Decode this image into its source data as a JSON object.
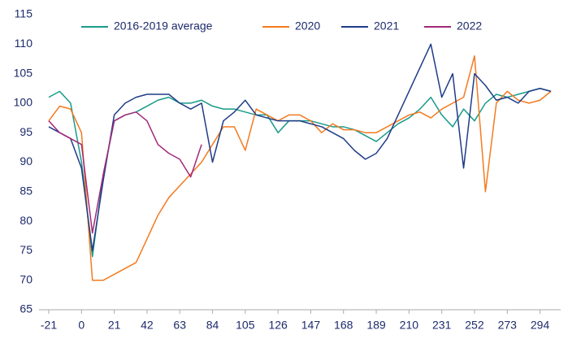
{
  "chart_data": {
    "type": "line",
    "x": [
      -21,
      -14,
      -7,
      0,
      7,
      14,
      21,
      28,
      35,
      42,
      49,
      56,
      63,
      70,
      77,
      84,
      91,
      98,
      105,
      112,
      119,
      126,
      133,
      140,
      147,
      154,
      161,
      168,
      175,
      182,
      189,
      196,
      203,
      210,
      217,
      224,
      231,
      238,
      245,
      252,
      259,
      266,
      273,
      280,
      287,
      294,
      301
    ],
    "series": [
      {
        "name": "2016-2019 average",
        "color": "#1a9a8a",
        "values": [
          101,
          102,
          100,
          90,
          74,
          88,
          97,
          98,
          98.5,
          99.5,
          100.5,
          101,
          100,
          100,
          100.5,
          99.5,
          99,
          99,
          98.5,
          98,
          98,
          95,
          97,
          97,
          97,
          96.5,
          96,
          96,
          95.5,
          94.5,
          93.5,
          95,
          96.5,
          97.5,
          99,
          101,
          98,
          96,
          99,
          97,
          100,
          101.5,
          101,
          101.5,
          102,
          102.5,
          102
        ]
      },
      {
        "name": "2020",
        "color": "#f47a1f",
        "values": [
          97,
          99.5,
          99,
          95,
          70,
          70,
          71,
          72,
          73,
          77,
          81,
          84,
          86,
          88,
          90,
          93,
          96,
          96,
          92,
          99,
          98,
          97,
          98,
          98,
          97,
          95,
          96.5,
          95.5,
          95.5,
          95,
          95,
          96,
          97,
          98,
          98.5,
          97.5,
          99,
          100,
          101,
          108,
          85,
          100,
          102,
          100.5,
          100,
          100.5,
          102
        ]
      },
      {
        "name": "2021",
        "color": "#1f3c88",
        "values": [
          96,
          95,
          94,
          89,
          75,
          87,
          98,
          100,
          101,
          101.5,
          101.5,
          101.5,
          100,
          99,
          100,
          90,
          97,
          98.5,
          100.5,
          98,
          97.5,
          97,
          97,
          97,
          96.5,
          96,
          95,
          94,
          92,
          90.5,
          91.5,
          94,
          98,
          102,
          106,
          110,
          101,
          105,
          89,
          105,
          103,
          100.5,
          101,
          100,
          102,
          102.5,
          102
        ]
      },
      {
        "name": "2022",
        "color": "#a3297a",
        "values": [
          97,
          95,
          94,
          93,
          78,
          88,
          97,
          98,
          98.5,
          97,
          93,
          91.5,
          90.5,
          87.5,
          93,
          null,
          null,
          null,
          null,
          null,
          null,
          null,
          null,
          null,
          null,
          null,
          null,
          null,
          null,
          null,
          null,
          null,
          null,
          null,
          null,
          null,
          null,
          null,
          null,
          null,
          null,
          null,
          null,
          null,
          null,
          null,
          null
        ]
      }
    ],
    "xlim": [
      -21,
      301
    ],
    "ylim": [
      65,
      115
    ],
    "xticks": [
      -21,
      0,
      21,
      42,
      63,
      84,
      105,
      126,
      147,
      168,
      189,
      210,
      231,
      252,
      273,
      294
    ],
    "yticks": [
      65,
      70,
      75,
      80,
      85,
      90,
      95,
      100,
      105,
      110,
      115
    ],
    "grid": false
  }
}
